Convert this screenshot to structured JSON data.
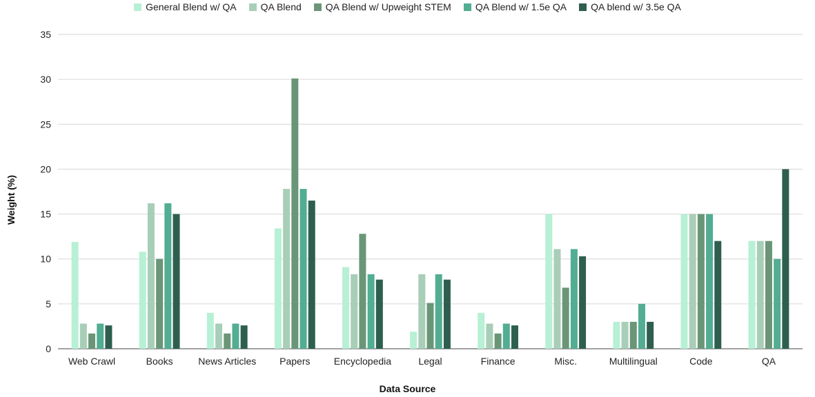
{
  "chart_data": {
    "type": "bar",
    "xlabel": "Data Source",
    "ylabel": "Weight (%)",
    "ylim": [
      0,
      35
    ],
    "yticks": [
      0,
      5,
      10,
      15,
      20,
      25,
      30,
      35
    ],
    "grid": true,
    "legend_position": "top",
    "categories": [
      "Web Crawl",
      "Books",
      "News Articles",
      "Papers",
      "Encyclopedia",
      "Legal",
      "Finance",
      "Misc.",
      "Multilingual",
      "Code",
      "QA"
    ],
    "series": [
      {
        "name": "General Blend w/ QA",
        "color": "#b7f0d5",
        "values": [
          11.9,
          10.8,
          4.0,
          13.4,
          9.1,
          1.9,
          4.0,
          15.0,
          3.0,
          15.0,
          12.0
        ]
      },
      {
        "name": "QA Blend",
        "color": "#a8ceb8",
        "values": [
          2.8,
          16.2,
          2.8,
          17.8,
          8.3,
          8.3,
          2.8,
          11.1,
          3.0,
          15.0,
          12.0
        ]
      },
      {
        "name": "QA Blend w/ Upweight STEM",
        "color": "#6a9677",
        "values": [
          1.7,
          10.0,
          1.7,
          30.1,
          12.8,
          5.1,
          1.7,
          6.8,
          3.0,
          15.0,
          12.0
        ]
      },
      {
        "name": "QA Blend w/ 1.5e QA",
        "color": "#52ad92",
        "values": [
          2.8,
          16.2,
          2.8,
          17.8,
          8.3,
          8.3,
          2.8,
          11.1,
          5.0,
          15.0,
          10.0
        ]
      },
      {
        "name": "QA blend w/ 3.5e QA",
        "color": "#2e5f4e",
        "values": [
          2.6,
          15.0,
          2.6,
          16.5,
          7.7,
          7.7,
          2.6,
          10.3,
          3.0,
          12.0,
          20.0
        ]
      }
    ]
  }
}
